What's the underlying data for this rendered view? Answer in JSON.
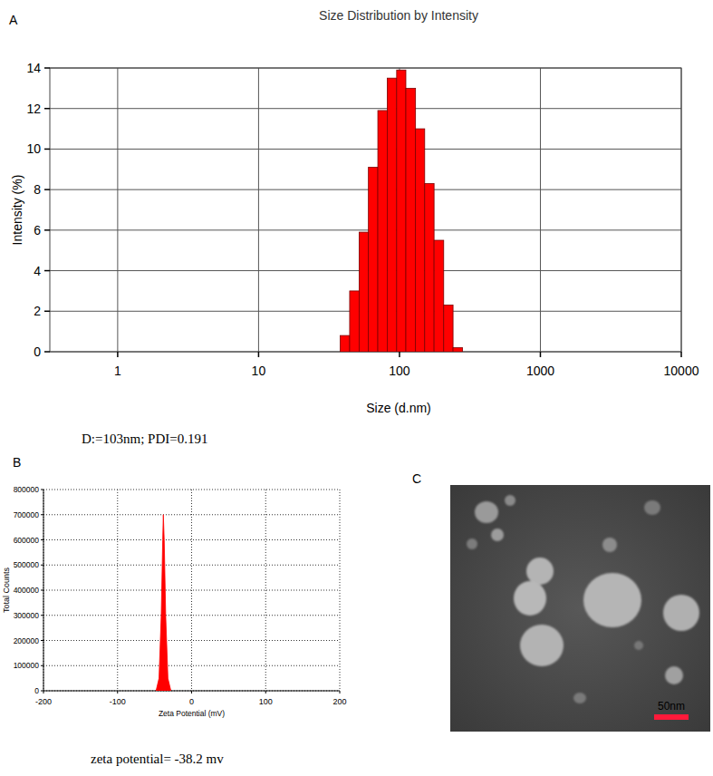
{
  "panel_labels": [
    "A",
    "B",
    "C"
  ],
  "image": {
    "scale_bar_label": "50nm"
  },
  "chart_data": [
    {
      "type": "histogram",
      "title": "Size Distribution by Intensity",
      "xlabel": "Size (d.nm)",
      "ylabel": "Intensity (%)",
      "annotation": "D:=103nm; PDI=0.191",
      "bins": [
        38,
        44.3,
        51.7,
        60.2,
        70.2,
        81.9,
        95.5,
        111,
        130,
        151,
        176,
        206,
        240,
        280
      ],
      "values": [
        0.8,
        3.0,
        5.9,
        9.1,
        11.9,
        13.5,
        13.9,
        13.0,
        11.0,
        8.3,
        5.5,
        2.3,
        0.2
      ],
      "color": "#ff0000",
      "log": "x",
      "grid": true,
      "xlim": [
        0.33,
        10000
      ],
      "xticks": [
        1,
        10,
        100,
        1000,
        10000
      ],
      "ylim": [
        0,
        14
      ],
      "yticks": [
        0,
        2,
        4,
        6,
        8,
        10,
        12,
        14
      ]
    },
    {
      "type": "area",
      "xlabel": "Zeta Potential (mV)",
      "ylabel": "Total Counts",
      "annotation": "zeta potential= -38.2 mv",
      "x": [
        -48,
        -44,
        -41,
        -39,
        -38.2,
        -37,
        -35,
        -32,
        -28
      ],
      "values": [
        0,
        50000,
        300000,
        600000,
        700000,
        600000,
        300000,
        50000,
        0
      ],
      "color": "#ff0000",
      "grid": true,
      "xlim": [
        -200,
        200
      ],
      "xticks": [
        -200,
        -100,
        0,
        100,
        200
      ],
      "ylim": [
        0,
        800000
      ],
      "yticks": [
        0,
        100000,
        200000,
        300000,
        400000,
        500000,
        600000,
        700000,
        800000
      ]
    }
  ]
}
